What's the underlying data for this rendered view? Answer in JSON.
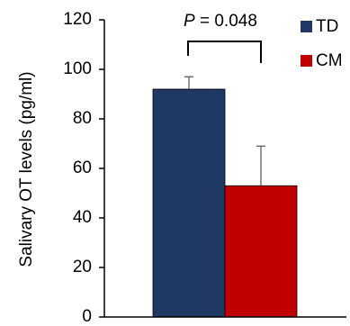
{
  "chart_data": {
    "type": "bar",
    "y_label": "Salivary OT levels (pg/ml)",
    "series": [
      {
        "name": "TD",
        "color": "#1f3864",
        "values": [
          92
        ],
        "errors": [
          5
        ]
      },
      {
        "name": "CM",
        "color": "#c00000",
        "values": [
          53
        ],
        "errors": [
          16
        ]
      }
    ],
    "annotation": {
      "italic": "P",
      "text": "= 0.048"
    },
    "ylim": [
      0,
      120
    ],
    "yticks": [
      0,
      20,
      40,
      60,
      80,
      100,
      120
    ]
  }
}
